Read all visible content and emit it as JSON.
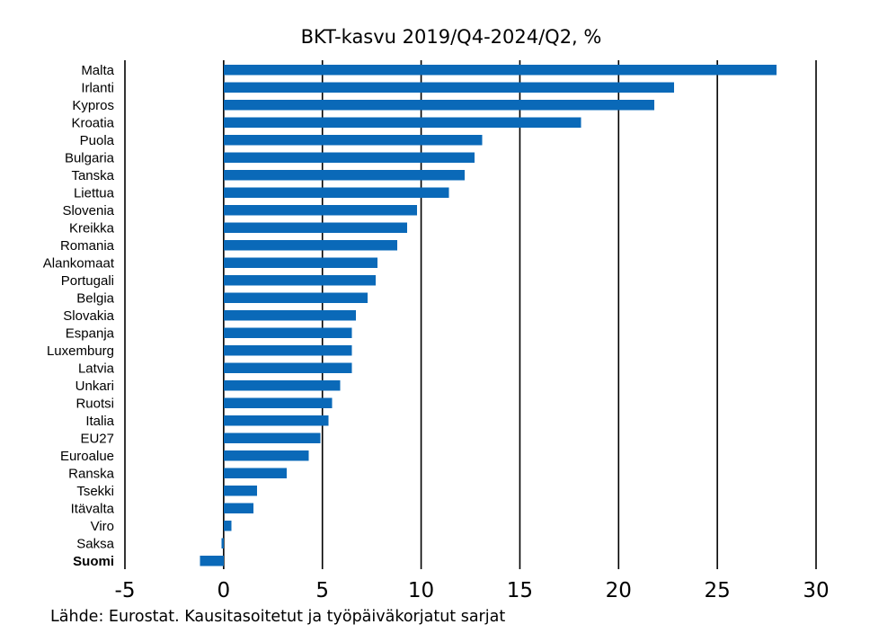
{
  "chart_data": {
    "type": "bar",
    "orientation": "horizontal",
    "title": "BKT-kasvu 2019/Q4-2024/Q2, %",
    "categories": [
      "Malta",
      "Irlanti",
      "Kypros",
      "Kroatia",
      "Puola",
      "Bulgaria",
      "Tanska",
      "Liettua",
      "Slovenia",
      "Kreikka",
      "Romania",
      "Alankomaat",
      "Portugali",
      "Belgia",
      "Slovakia",
      "Espanja",
      "Luxemburg",
      "Latvia",
      "Unkari",
      "Ruotsi",
      "Italia",
      "EU27",
      "Euroalue",
      "Ranska",
      "Tsekki",
      "Itävalta",
      "Viro",
      "Saksa",
      "Suomi"
    ],
    "values": [
      28.0,
      22.8,
      21.8,
      18.1,
      13.1,
      12.7,
      12.2,
      11.4,
      9.8,
      9.3,
      8.8,
      7.8,
      7.7,
      7.3,
      6.7,
      6.5,
      6.5,
      6.5,
      5.9,
      5.5,
      5.3,
      4.9,
      4.3,
      3.2,
      1.7,
      1.5,
      0.4,
      -0.1,
      -1.2
    ],
    "highlight": "Suomi",
    "xlim": [
      -5,
      30
    ],
    "xticks": [
      -5,
      0,
      5,
      10,
      15,
      20,
      25,
      30
    ],
    "xlabel": "",
    "ylabel": "",
    "grid": true,
    "bar_color": "#0a69b8"
  },
  "source_note": "Lähde: Eurostat. Kausitasoitetut ja työpäiväkorjatut sarjat"
}
